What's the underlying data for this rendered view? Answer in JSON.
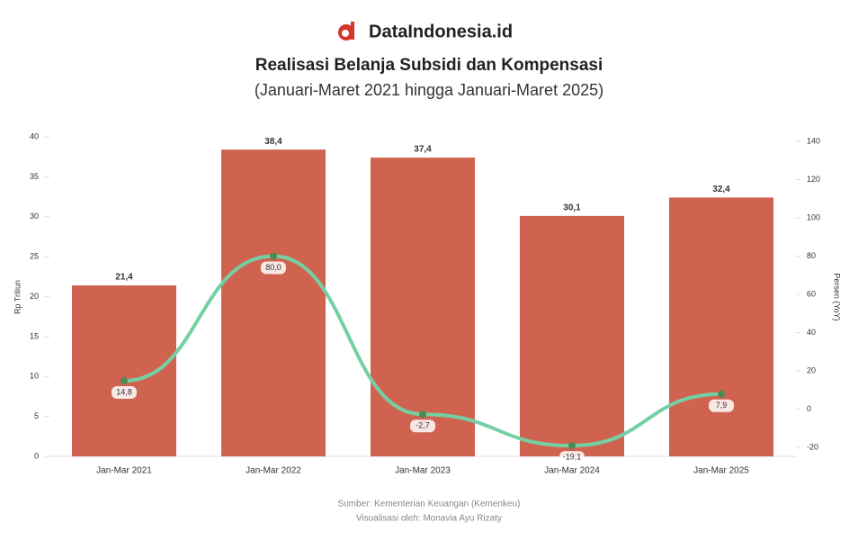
{
  "brand": "DataIndonesia.id",
  "chart_data": {
    "type": "bar-line",
    "title": "Realisasi Belanja Subsidi dan Kompensasi",
    "subtitle": "(Januari-Maret 2021 hingga Januari-Maret 2025)",
    "y_label": "Rp Triliun",
    "y2_label": "Persen (YoY)",
    "categories": [
      "Jan-Mar 2021",
      "Jan-Mar 2022",
      "Jan-Mar 2023",
      "Jan-Mar 2024",
      "Jan-Mar 2025"
    ],
    "series": [
      {
        "type": "bar",
        "color": "#d0634f",
        "values": [
          21.4,
          38.4,
          37.4,
          30.1,
          32.4
        ],
        "value_labels": [
          "21,4",
          "38,4",
          "37,4",
          "30,1",
          "32,4"
        ]
      },
      {
        "type": "line",
        "axis": "y2",
        "color": "#74d0a4",
        "marker_color": "#4d8a52",
        "values": [
          14.8,
          80.0,
          -2.7,
          -19.1,
          7.9
        ],
        "value_labels": [
          "14,8",
          "80,0",
          "-2,7",
          "-19,1",
          "7,9"
        ]
      }
    ],
    "ylim": [
      0,
      40
    ],
    "yticks": [
      0,
      5,
      10,
      15,
      20,
      25,
      30,
      35,
      40
    ],
    "y2lim": [
      -20,
      140
    ],
    "y2ticks": [
      -20,
      0,
      20,
      40,
      60,
      80,
      100,
      120,
      140
    ]
  },
  "source": "Sumber: Kementerian Keuangan (Kemenkeu)",
  "credit": "Visualisasi oleh: Monavia Ayu Rizaty"
}
